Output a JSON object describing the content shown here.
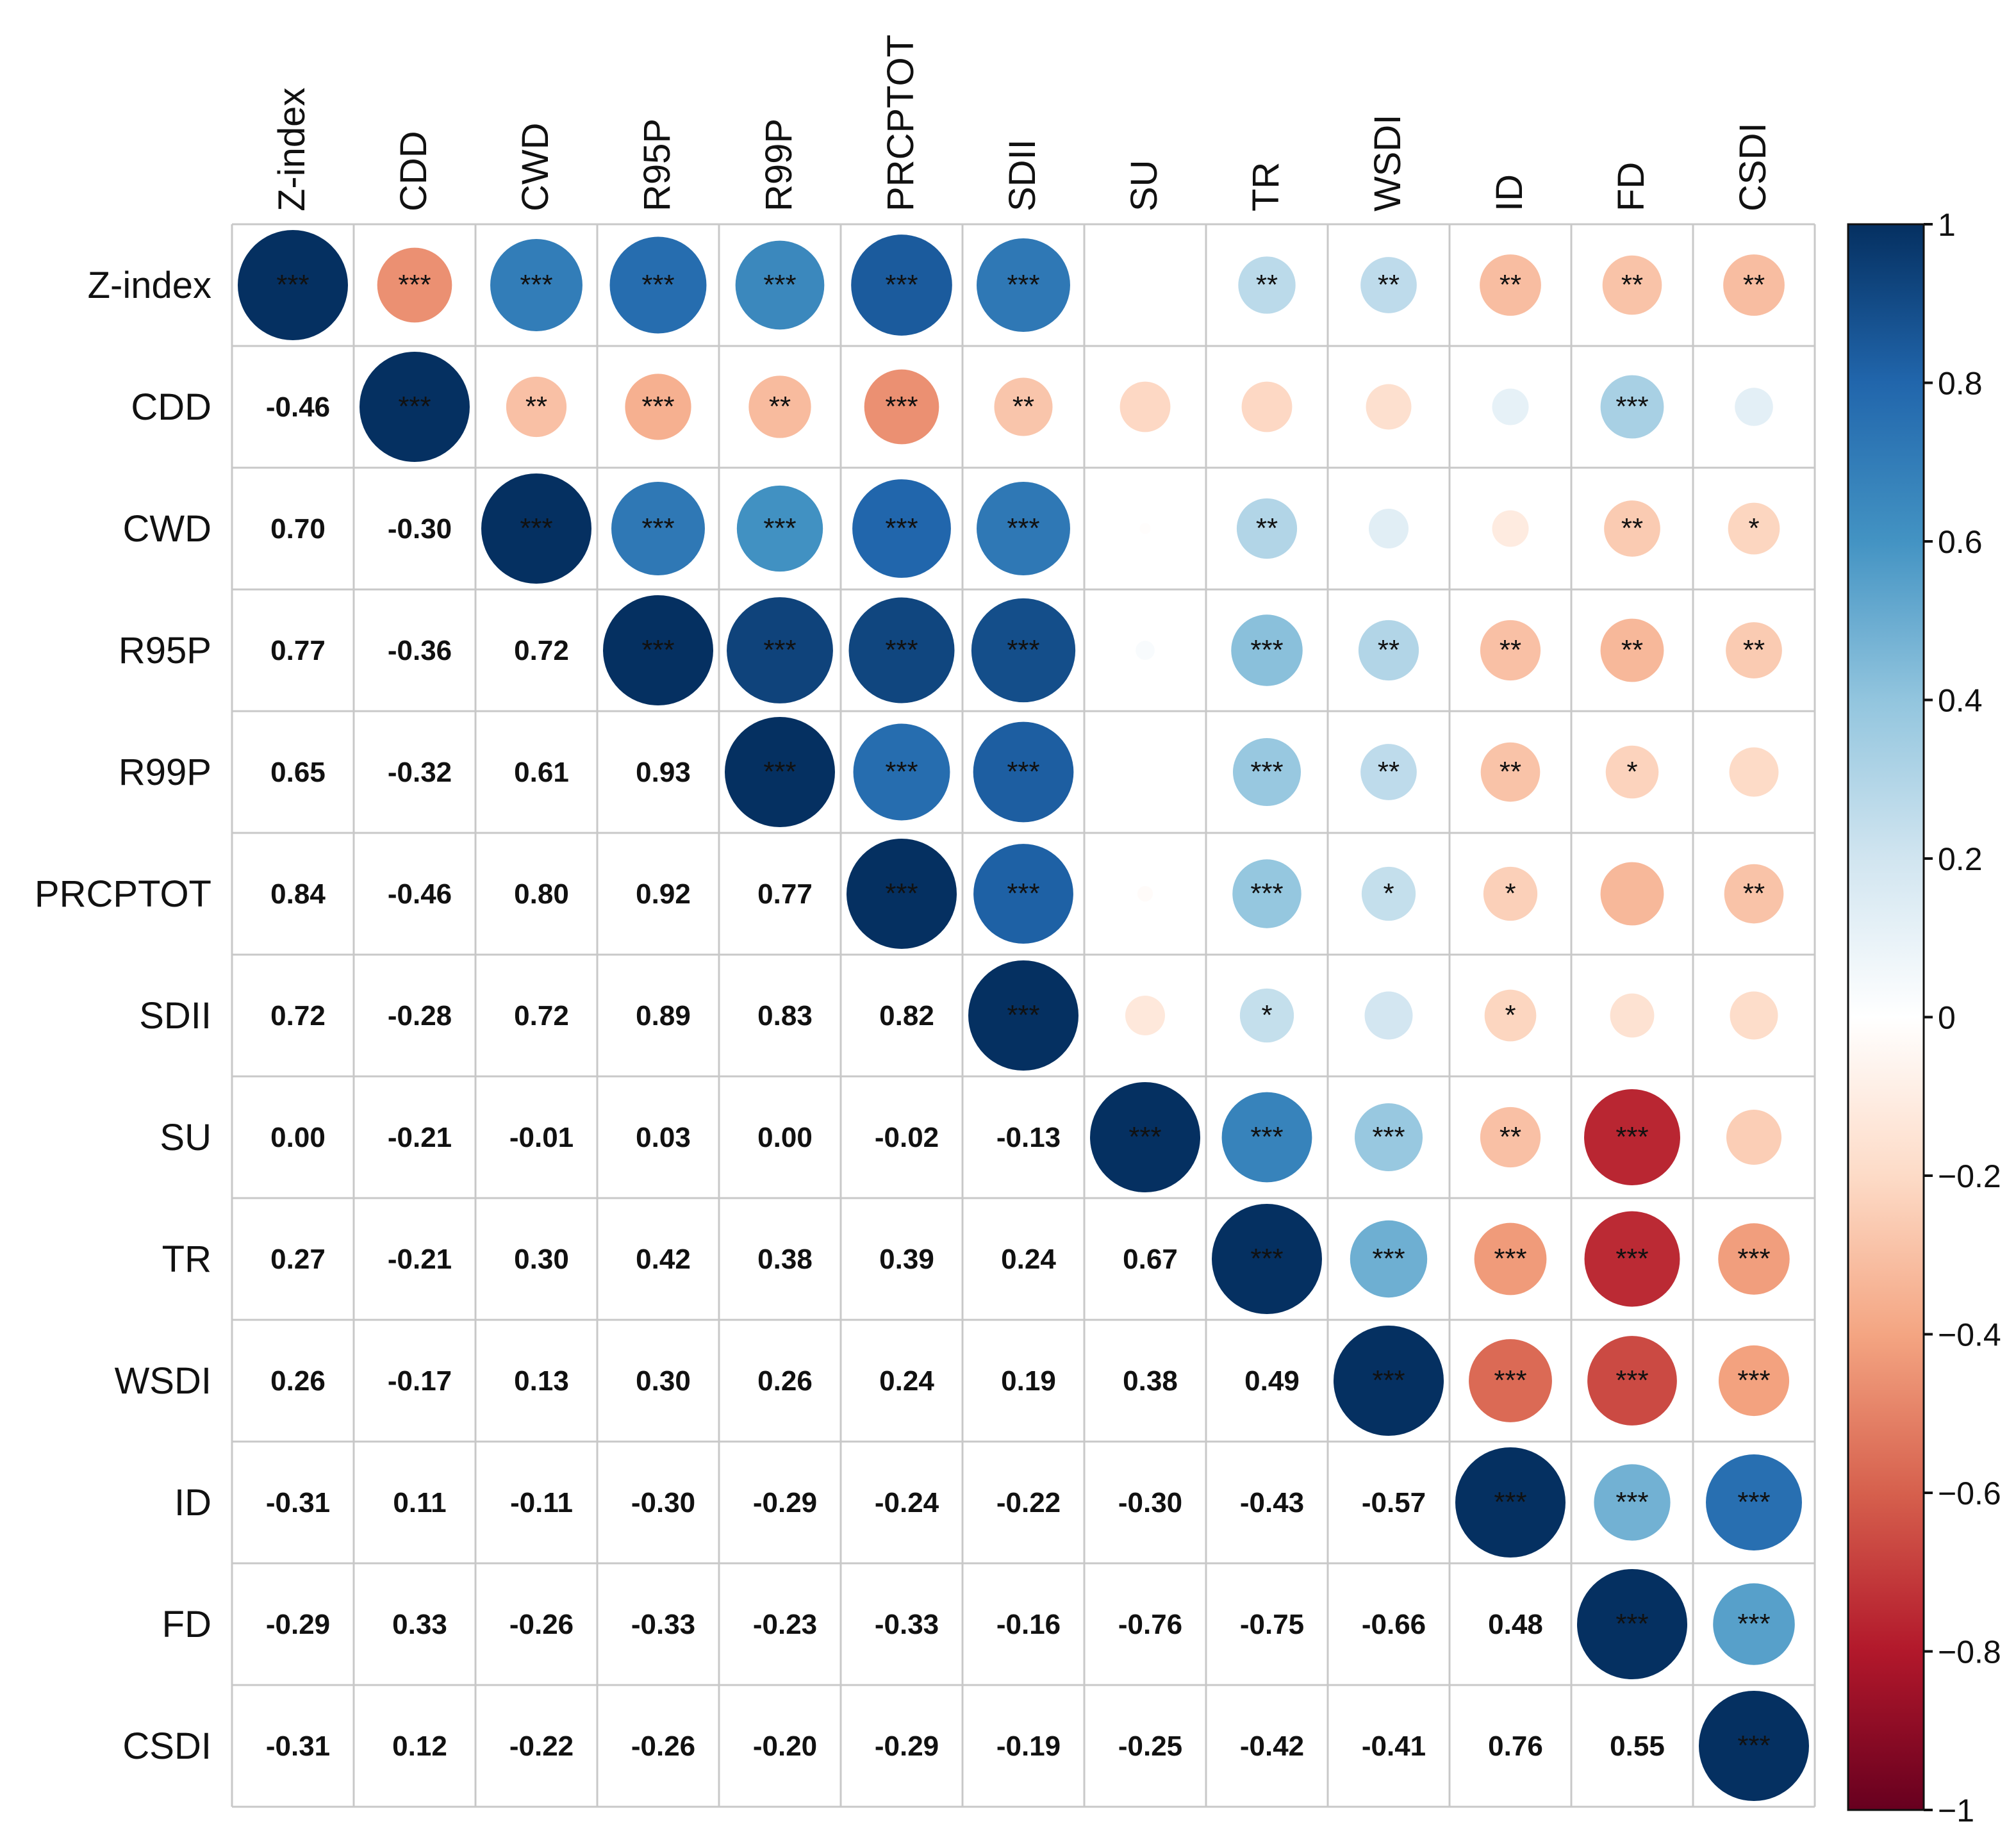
{
  "chart_data": {
    "type": "heatmap",
    "subtype": "correlation-matrix",
    "variables": [
      "Z-index",
      "CDD",
      "CWD",
      "R95P",
      "R99P",
      "PRCPTOT",
      "SDII",
      "SU",
      "TR",
      "WSDI",
      "ID",
      "FD",
      "CSDI"
    ],
    "matrix": [
      [
        1.0,
        -0.46,
        0.7,
        0.77,
        0.65,
        0.84,
        0.72,
        0.0,
        0.27,
        0.26,
        -0.31,
        -0.29,
        -0.31
      ],
      [
        -0.46,
        1.0,
        -0.3,
        -0.36,
        -0.32,
        -0.46,
        -0.28,
        -0.21,
        -0.21,
        -0.17,
        0.11,
        0.33,
        0.12
      ],
      [
        0.7,
        -0.3,
        1.0,
        0.72,
        0.61,
        0.8,
        0.72,
        -0.01,
        0.3,
        0.13,
        -0.11,
        -0.26,
        -0.22
      ],
      [
        0.77,
        -0.36,
        0.72,
        1.0,
        0.93,
        0.92,
        0.89,
        0.03,
        0.42,
        0.3,
        -0.3,
        -0.33,
        -0.26
      ],
      [
        0.65,
        -0.32,
        0.61,
        0.93,
        1.0,
        0.77,
        0.83,
        0.0,
        0.38,
        0.26,
        -0.29,
        -0.23,
        -0.2
      ],
      [
        0.84,
        -0.46,
        0.8,
        0.92,
        0.77,
        1.0,
        0.82,
        -0.02,
        0.39,
        0.24,
        -0.24,
        -0.33,
        -0.29
      ],
      [
        0.72,
        -0.28,
        0.72,
        0.89,
        0.83,
        0.82,
        1.0,
        -0.13,
        0.24,
        0.19,
        -0.22,
        -0.16,
        -0.19
      ],
      [
        0.0,
        -0.21,
        -0.01,
        0.03,
        0.0,
        -0.02,
        -0.13,
        1.0,
        0.67,
        0.38,
        -0.3,
        -0.76,
        -0.25
      ],
      [
        0.27,
        -0.21,
        0.3,
        0.42,
        0.38,
        0.39,
        0.24,
        0.67,
        1.0,
        0.49,
        -0.43,
        -0.75,
        -0.42
      ],
      [
        0.26,
        -0.17,
        0.13,
        0.3,
        0.26,
        0.24,
        0.19,
        0.38,
        0.49,
        1.0,
        -0.57,
        -0.66,
        -0.41
      ],
      [
        -0.31,
        0.11,
        -0.11,
        -0.3,
        -0.29,
        -0.24,
        -0.22,
        -0.3,
        -0.43,
        -0.57,
        1.0,
        0.48,
        0.76
      ],
      [
        -0.29,
        0.33,
        -0.26,
        -0.33,
        -0.23,
        -0.33,
        -0.16,
        -0.76,
        -0.75,
        -0.66,
        0.48,
        1.0,
        0.55
      ],
      [
        -0.31,
        0.12,
        -0.22,
        -0.26,
        -0.2,
        -0.29,
        -0.19,
        -0.25,
        -0.42,
        -0.41,
        0.76,
        0.55,
        1.0
      ]
    ],
    "significance": [
      [
        "***",
        "***",
        "***",
        "***",
        "***",
        "***",
        "***",
        "",
        "**",
        "**",
        "**",
        "**",
        "**"
      ],
      [
        "***",
        "***",
        "**",
        "***",
        "**",
        "***",
        "**",
        "",
        "",
        "",
        "",
        "***",
        ""
      ],
      [
        "***",
        "**",
        "***",
        "***",
        "***",
        "***",
        "***",
        "",
        "**",
        "",
        "",
        "**",
        "*"
      ],
      [
        "***",
        "***",
        "***",
        "***",
        "***",
        "***",
        "***",
        "",
        "***",
        "**",
        "**",
        "**",
        "**"
      ],
      [
        "***",
        "**",
        "***",
        "***",
        "***",
        "***",
        "***",
        "",
        "***",
        "**",
        "**",
        "*",
        ""
      ],
      [
        "***",
        "***",
        "***",
        "***",
        "***",
        "***",
        "***",
        "",
        "***",
        "*",
        "*",
        "",
        "**"
      ],
      [
        "***",
        "**",
        "***",
        "***",
        "***",
        "***",
        "***",
        "",
        "*",
        "",
        "*",
        "",
        ""
      ],
      [
        "",
        "",
        "",
        "",
        "",
        "",
        "",
        "***",
        "***",
        "***",
        "**",
        "***",
        ""
      ],
      [
        "**",
        "",
        "**",
        "***",
        "***",
        "***",
        "*",
        "***",
        "***",
        "***",
        "***",
        "***",
        "***"
      ],
      [
        "**",
        "",
        "",
        "**",
        "**",
        "*",
        "",
        "***",
        "***",
        "***",
        "***",
        "***",
        "***"
      ],
      [
        "**",
        "",
        "",
        "**",
        "**",
        "*",
        "*",
        "**",
        "***",
        "***",
        "***",
        "***",
        "***"
      ],
      [
        "**",
        "***",
        "**",
        "**",
        "*",
        "",
        "",
        "***",
        "***",
        "***",
        "***",
        "***",
        "***"
      ],
      [
        "**",
        "",
        "*",
        "**",
        "",
        "**",
        "",
        "",
        "***",
        "***",
        "***",
        "***",
        "***"
      ]
    ],
    "lower_triangle": "numbers",
    "upper_triangle": "circles",
    "colorbar": {
      "range": [
        -1,
        1
      ],
      "ticks": [
        1,
        0.8,
        0.6,
        0.4,
        0.2,
        0,
        -0.2,
        -0.4,
        -0.6,
        -0.8,
        -1
      ],
      "tick_labels": [
        "1",
        "0.8",
        "0.6",
        "0.4",
        "0.2",
        "0",
        "−0.2",
        "−0.4",
        "−0.6",
        "−0.8",
        "−1"
      ],
      "colors": [
        "#67001F",
        "#B2182B",
        "#D6604D",
        "#F4A582",
        "#FDDBC7",
        "#FFFFFF",
        "#D1E5F0",
        "#92C5DE",
        "#4393C3",
        "#2166AC",
        "#053061"
      ]
    },
    "title": "",
    "xlabel": "",
    "ylabel": ""
  }
}
